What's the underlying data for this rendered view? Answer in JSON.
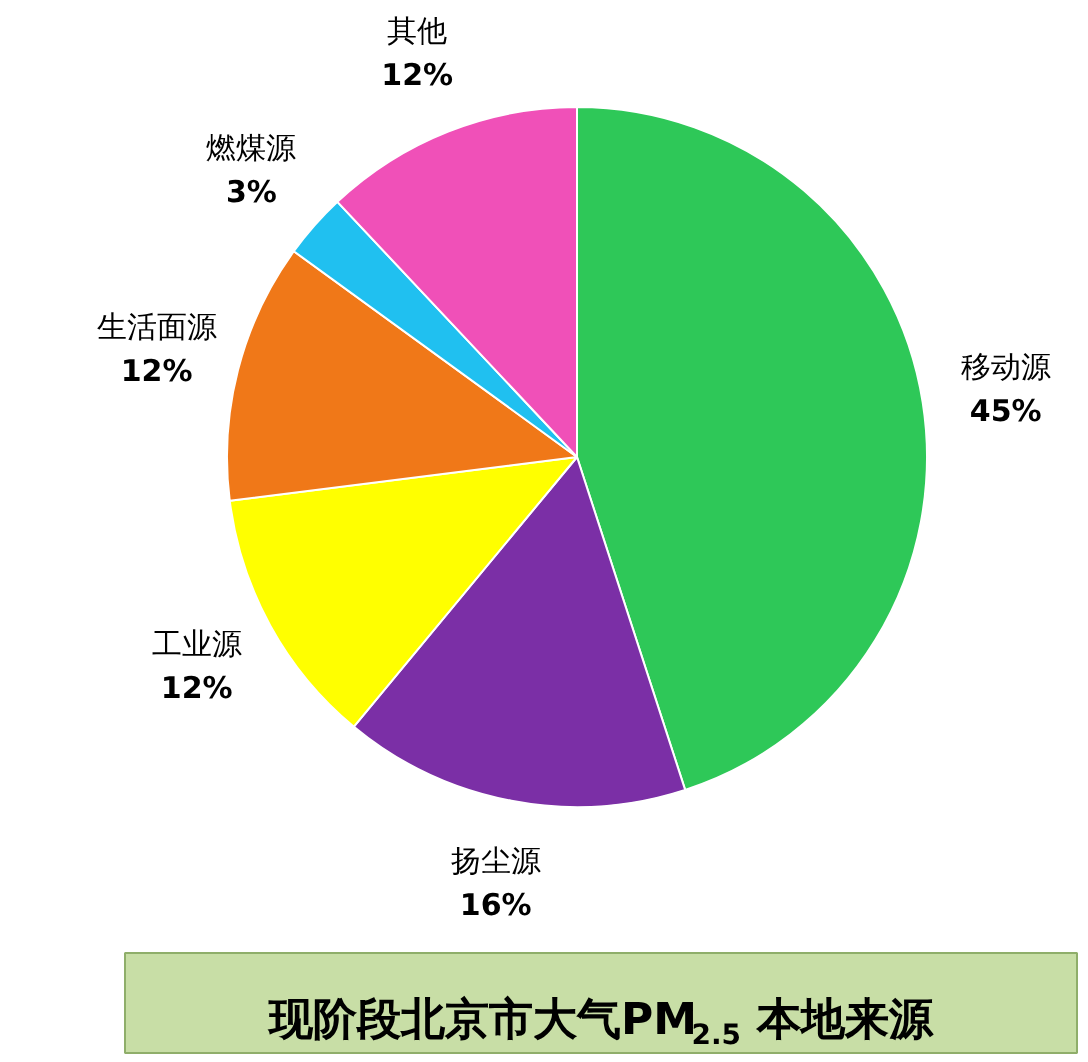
{
  "chart_data": {
    "type": "pie",
    "title": "现阶段北京市大气PM$_{2.5}$本地来源",
    "categories": [
      "移动源",
      "扬尘源",
      "工业源",
      "生活面源",
      "燃煤源",
      "其他"
    ],
    "values": [
      45,
      16,
      12,
      12,
      3,
      12
    ],
    "colors": [
      "#2ec858",
      "#7b2fa6",
      "#ffff00",
      "#f07818",
      "#20c0f0",
      "#f050b8"
    ],
    "value_labels": [
      "45%",
      "16%",
      "12%",
      "12%",
      "3%",
      "12%"
    ]
  }
}
